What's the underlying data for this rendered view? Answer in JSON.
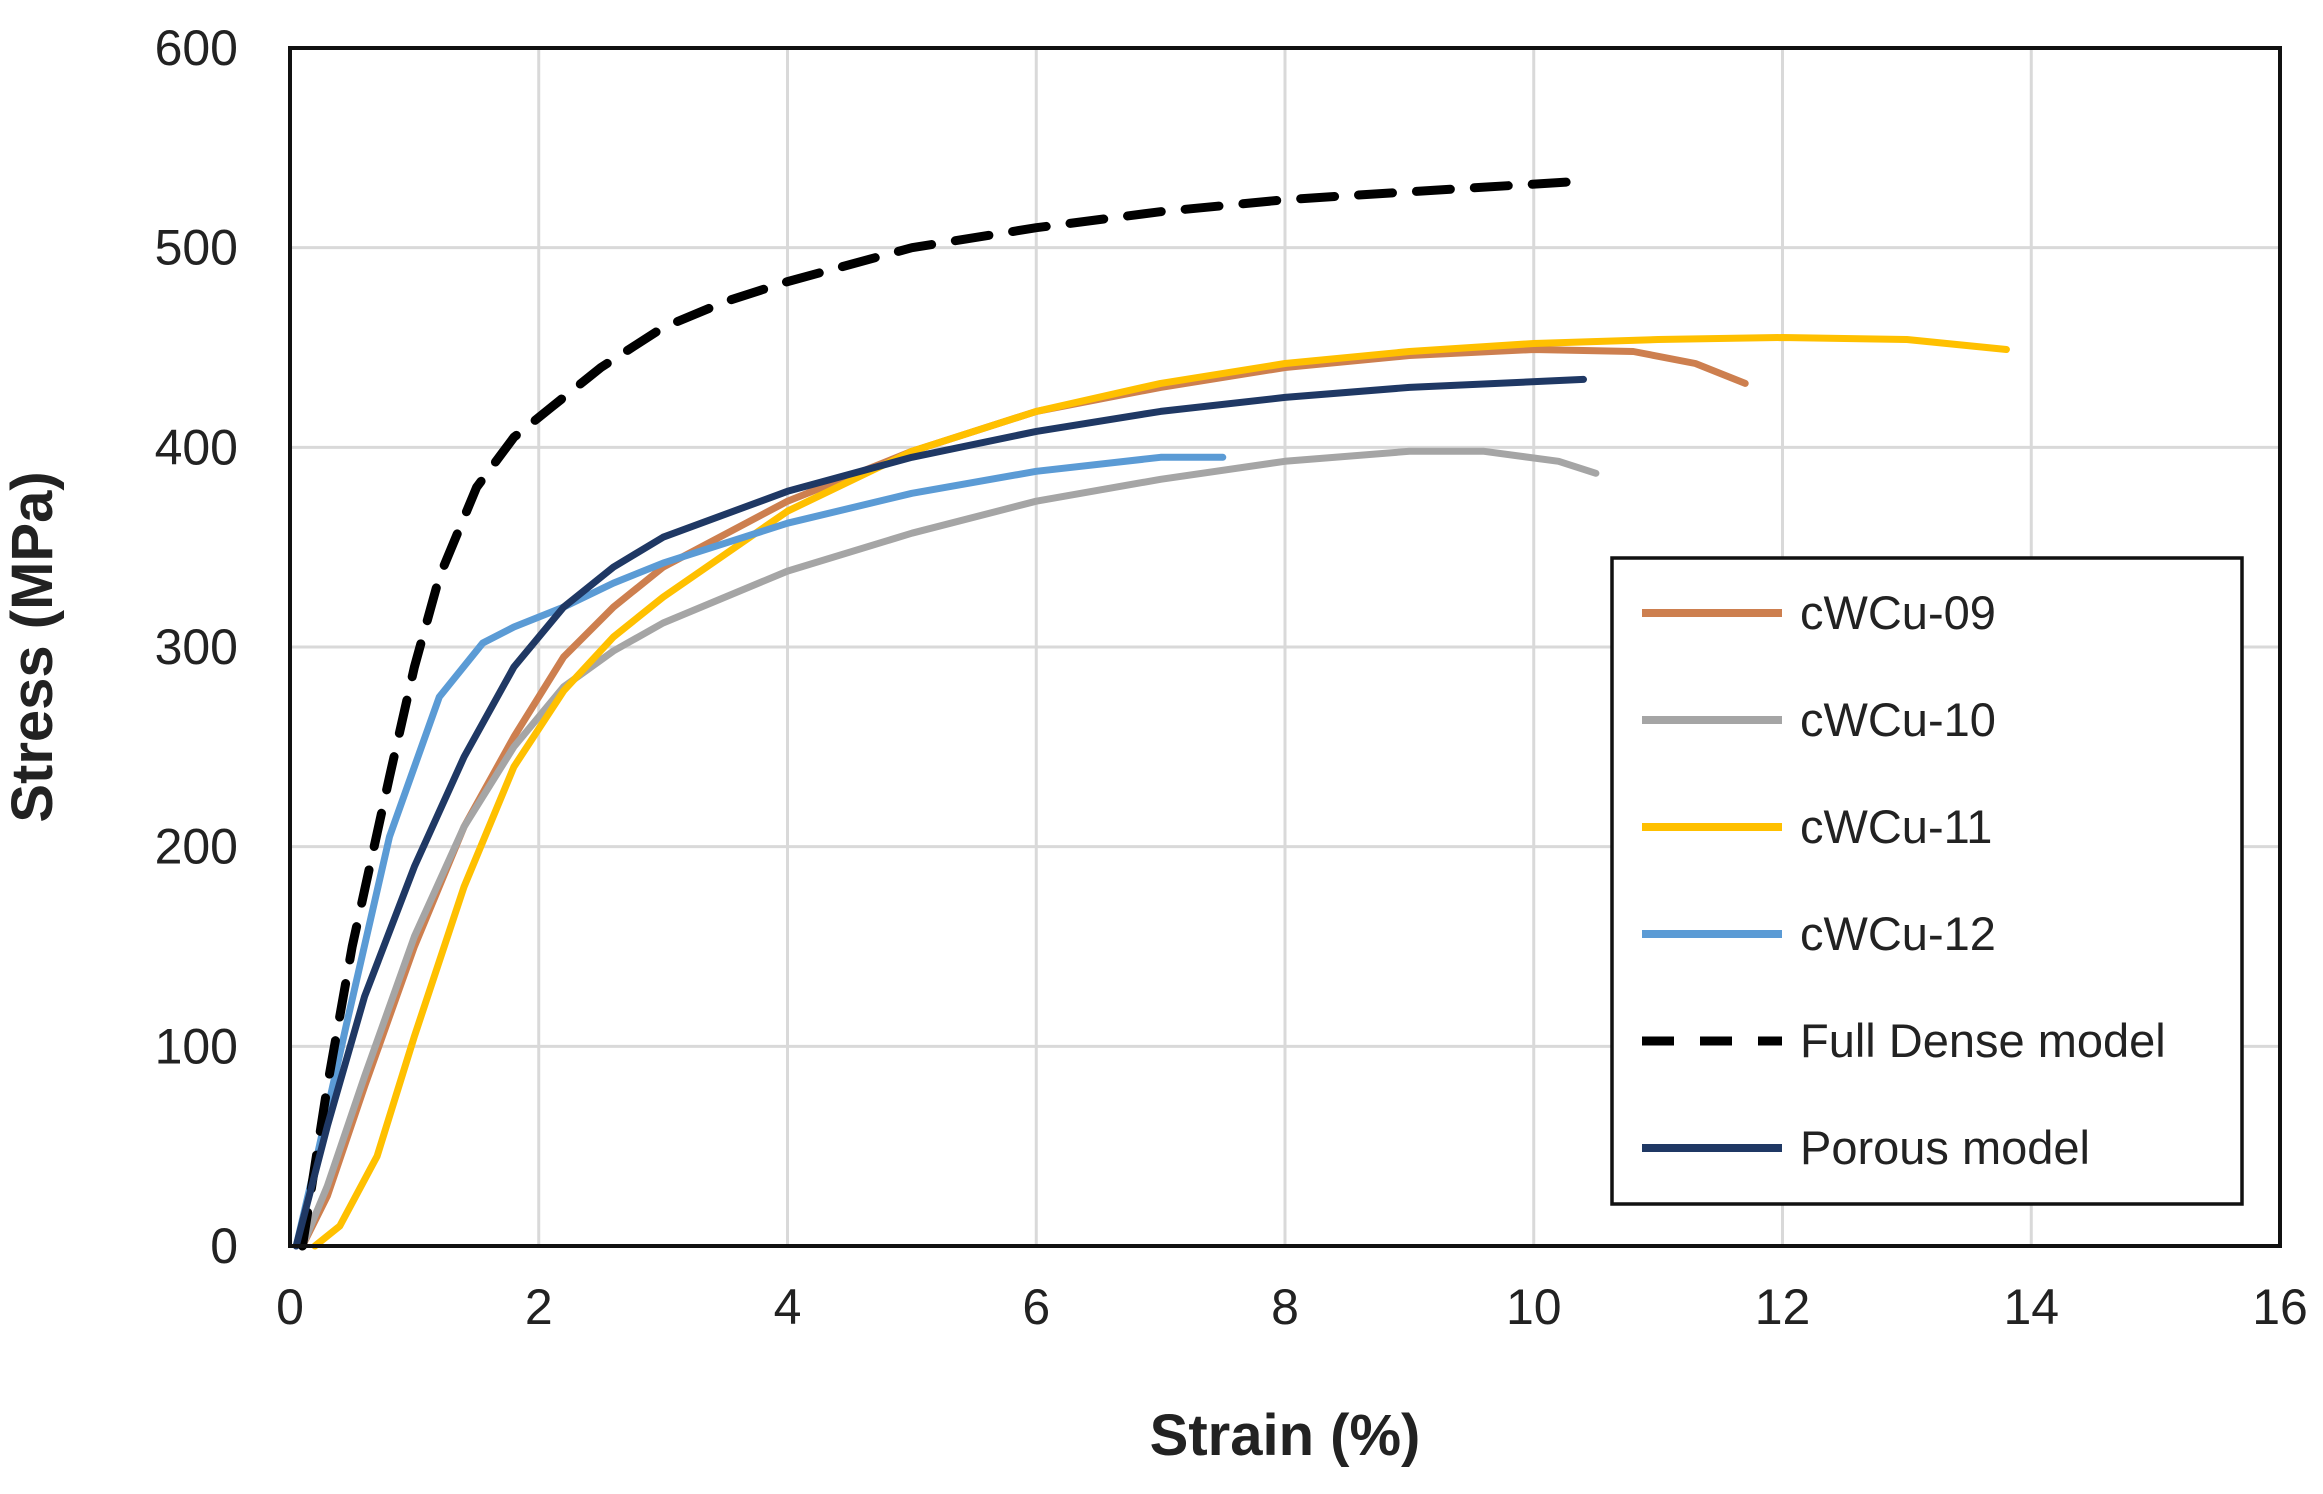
{
  "chart_data": {
    "type": "line",
    "title": "",
    "xlabel": "Strain (%)",
    "ylabel": "Stress (MPa)",
    "xlim": [
      0,
      16
    ],
    "ylim": [
      0,
      600
    ],
    "xticks": [
      0,
      2,
      4,
      6,
      8,
      10,
      12,
      14,
      16
    ],
    "yticks": [
      0,
      100,
      200,
      300,
      400,
      500,
      600
    ],
    "grid": true,
    "legend_position": "right",
    "series": [
      {
        "name": "cWCu-09",
        "color": "#cd7f4f",
        "dash": "solid",
        "x": [
          0.1,
          0.3,
          0.6,
          1.0,
          1.4,
          1.8,
          2.2,
          2.6,
          3.0,
          4.0,
          5.0,
          6.0,
          7.0,
          8.0,
          9.0,
          10.0,
          10.8,
          11.3,
          11.7
        ],
        "y": [
          0,
          25,
          80,
          150,
          210,
          255,
          295,
          320,
          340,
          373,
          398,
          418,
          430,
          440,
          446,
          449,
          448,
          442,
          432
        ]
      },
      {
        "name": "cWCu-10",
        "color": "#a5a5a5",
        "dash": "solid",
        "x": [
          0.1,
          0.3,
          0.6,
          1.0,
          1.4,
          1.8,
          2.2,
          2.6,
          3.0,
          4.0,
          5.0,
          6.0,
          7.0,
          8.0,
          9.0,
          9.6,
          10.2,
          10.5
        ],
        "y": [
          0,
          30,
          85,
          155,
          210,
          250,
          280,
          298,
          312,
          338,
          357,
          373,
          384,
          393,
          398,
          398,
          393,
          387
        ]
      },
      {
        "name": "cWCu-11",
        "color": "#ffc000",
        "dash": "solid",
        "x": [
          0.2,
          0.4,
          0.7,
          1.0,
          1.4,
          1.8,
          2.2,
          2.6,
          3.0,
          4.0,
          5.0,
          6.0,
          7.0,
          8.0,
          9.0,
          10.0,
          11.0,
          12.0,
          13.0,
          13.8
        ],
        "y": [
          0,
          10,
          45,
          105,
          180,
          240,
          278,
          305,
          325,
          368,
          398,
          418,
          432,
          442,
          448,
          452,
          454,
          455,
          454,
          449
        ]
      },
      {
        "name": "cWCu-12",
        "color": "#5b9bd5",
        "dash": "solid",
        "x": [
          0.05,
          0.2,
          0.45,
          0.8,
          1.2,
          1.55,
          1.8,
          2.2,
          2.6,
          3.0,
          4.0,
          5.0,
          6.0,
          7.0,
          7.5
        ],
        "y": [
          0,
          40,
          110,
          205,
          275,
          302,
          310,
          320,
          332,
          342,
          362,
          377,
          388,
          395,
          395
        ]
      },
      {
        "name": "Full Dense model",
        "color": "#000000",
        "dash": "dashed",
        "x": [
          0.1,
          0.3,
          0.5,
          0.8,
          1.0,
          1.2,
          1.5,
          1.8,
          2.1,
          2.5,
          3.0,
          3.5,
          4.0,
          5.0,
          6.0,
          7.0,
          8.0,
          9.0,
          10.3
        ],
        "y": [
          0,
          80,
          150,
          235,
          290,
          335,
          380,
          405,
          420,
          440,
          460,
          473,
          483,
          500,
          510,
          518,
          524,
          528,
          533
        ]
      },
      {
        "name": "Porous model",
        "color": "#1f3864",
        "dash": "solid",
        "x": [
          0.05,
          0.3,
          0.6,
          1.0,
          1.4,
          1.8,
          2.2,
          2.6,
          3.0,
          4.0,
          5.0,
          6.0,
          7.0,
          8.0,
          9.0,
          10.4
        ],
        "y": [
          0,
          60,
          125,
          190,
          245,
          290,
          320,
          340,
          355,
          378,
          395,
          408,
          418,
          425,
          430,
          434
        ]
      }
    ]
  }
}
